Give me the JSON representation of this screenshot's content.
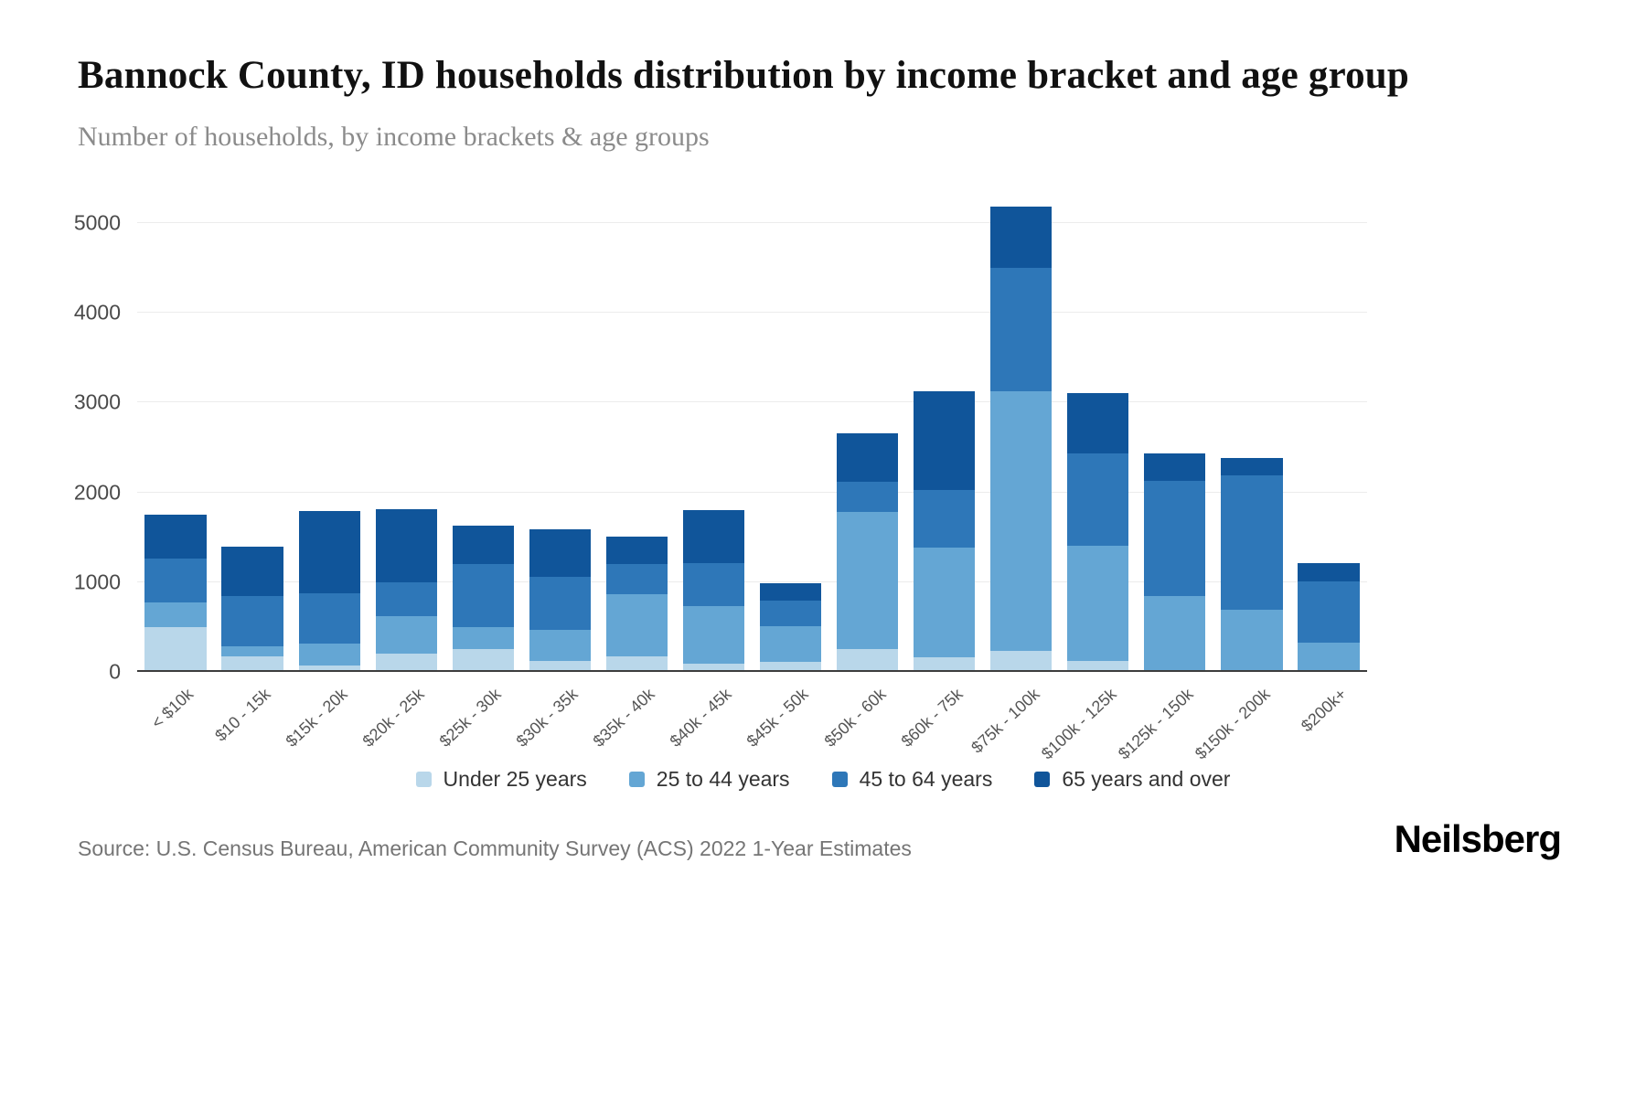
{
  "header": {
    "title": "Bannock County, ID households distribution by income bracket and age group",
    "subtitle": "Number of households, by income brackets & age groups"
  },
  "source": {
    "text": "Source: U.S. Census Bureau, American Community Survey (ACS) 2022 1-Year Estimates"
  },
  "brand": {
    "name": "Neilsberg"
  },
  "chart_data": {
    "type": "bar",
    "stacked": true,
    "title": "Bannock County, ID households distribution by income bracket and age group",
    "subtitle": "Number of households, by income brackets & age groups",
    "xlabel": "",
    "ylabel": "Number of households",
    "ylim": [
      0,
      5400
    ],
    "yticks": [
      0,
      1000,
      2000,
      3000,
      4000,
      5000
    ],
    "grid": true,
    "legend_position": "bottom",
    "categories": [
      "< $10k",
      "$10 - 15k",
      "$15k - 20k",
      "$20k - 25k",
      "$25k - 30k",
      "$30k - 35k",
      "$35k - 40k",
      "$40k - 45k",
      "$45k - 50k",
      "$50k - 60k",
      "$60k - 75k",
      "$75k - 100k",
      "$100k - 125k",
      "$125k - 150k",
      "$150k - 200k",
      "$200k+"
    ],
    "series": [
      {
        "name": "Under 25 years",
        "color": "#b9d7ea",
        "values": [
          500,
          170,
          70,
          200,
          250,
          120,
          170,
          90,
          110,
          250,
          160,
          230,
          120,
          20,
          10,
          10
        ]
      },
      {
        "name": "25 to 44 years",
        "color": "#64a6d4",
        "values": [
          270,
          110,
          240,
          420,
          250,
          350,
          700,
          640,
          400,
          1530,
          1220,
          2900,
          1290,
          820,
          680,
          320
        ]
      },
      {
        "name": "45 to 64 years",
        "color": "#2e77b8",
        "values": [
          490,
          560,
          570,
          380,
          700,
          590,
          330,
          480,
          280,
          340,
          650,
          1370,
          1020,
          1290,
          1500,
          680
        ]
      },
      {
        "name": "65 years and over",
        "color": "#10559a",
        "values": [
          490,
          560,
          910,
          810,
          430,
          530,
          310,
          590,
          200,
          540,
          1100,
          690,
          680,
          300,
          190,
          200
        ]
      }
    ],
    "totals": [
      1750,
      1400,
      1790,
      1810,
      1630,
      1590,
      1510,
      1800,
      990,
      2660,
      3130,
      5190,
      3110,
      2430,
      2380,
      1210
    ]
  }
}
